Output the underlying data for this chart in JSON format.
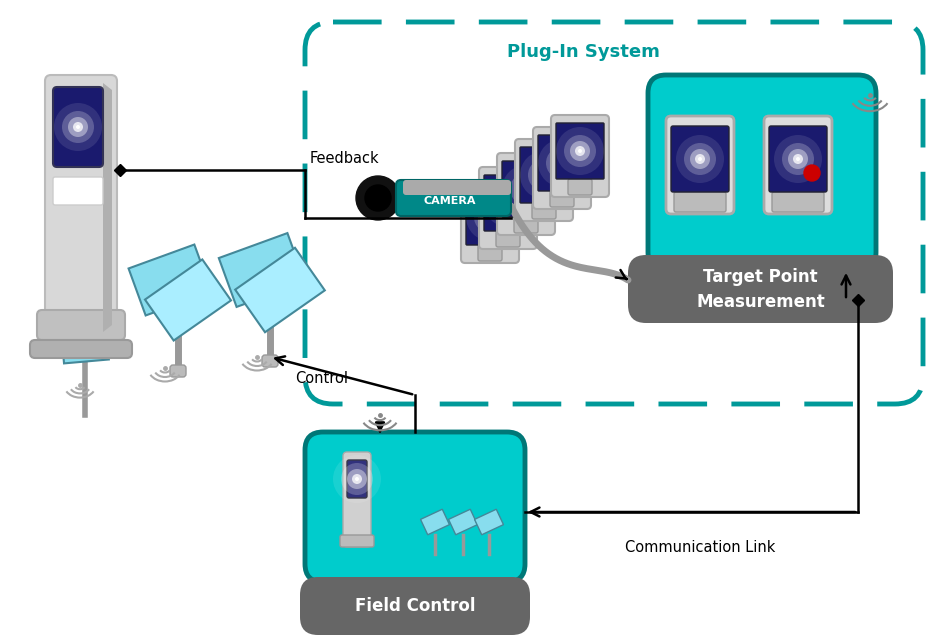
{
  "bg_color": "#ffffff",
  "teal": "#009999",
  "cyan": "#00CCCC",
  "dark_teal": "#007777",
  "dark_gray": "#666666",
  "navy": "#1a1a6e",
  "light_gray": "#cccccc",
  "mid_gray": "#888888",
  "cam_body_color": "#aaaaaa",
  "cam_lens_color": "#222222",
  "cam_label_color": "#333333",
  "plug_in_label": "Plug-In System",
  "feedback_label": "Feedback",
  "control_label": "Control",
  "comm_label": "Communication Link",
  "target_label": "Target Point\nMeasurement",
  "field_label": "Field Control",
  "camera_label": "CAMERA"
}
